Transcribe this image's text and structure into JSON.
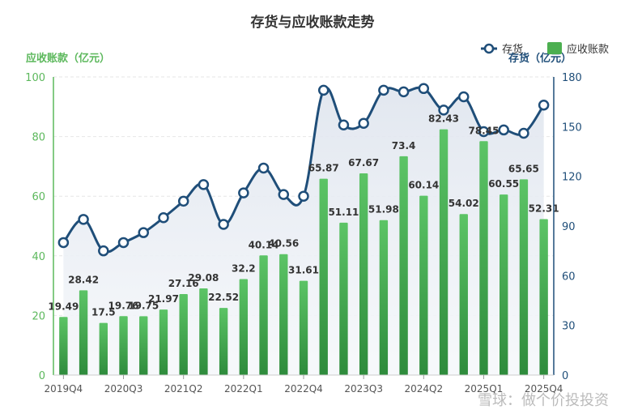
{
  "chart_data": {
    "type": "bar",
    "title": "存货与应收账款走势",
    "ylabel_left": "应收账款（亿元）",
    "ylabel_right": "存货（亿元）",
    "ylim_left": [
      0,
      100
    ],
    "yticks_left": [
      "0",
      "20",
      "40",
      "60",
      "80",
      "100"
    ],
    "ylim_right": [
      0,
      180
    ],
    "yticks_right": [
      "0",
      "30",
      "60",
      "90",
      "120",
      "150",
      "180"
    ],
    "x_tick_labels": [
      "2019Q4",
      "2020Q3",
      "2021Q2",
      "2022Q1",
      "2022Q4",
      "2023Q3",
      "2024Q2",
      "2025Q1",
      "2025Q4"
    ],
    "categories": [
      "2019Q4",
      "2020Q1",
      "2020Q2",
      "2020Q3",
      "2020Q4",
      "2021Q1",
      "2021Q2",
      "2021Q3",
      "2021Q4",
      "2022Q1",
      "2022Q2",
      "2022Q3",
      "2022Q4",
      "2023Q1",
      "2023Q2",
      "2023Q3",
      "2023Q4",
      "2024Q1",
      "2024Q2",
      "2024Q3",
      "2024Q4",
      "2025Q1",
      "2025Q2",
      "2025Q3",
      "2025Q4"
    ],
    "legend": [
      "存货",
      "应收账款"
    ],
    "legend_position": "top-right",
    "series": [
      {
        "name": "应收账款",
        "type": "bar",
        "axis": "left",
        "color": "#4caf50",
        "values": [
          19.49,
          28.42,
          17.5,
          19.76,
          19.75,
          21.97,
          27.16,
          29.08,
          22.52,
          32.2,
          40.14,
          40.56,
          31.61,
          65.87,
          51.11,
          67.67,
          51.98,
          73.4,
          60.14,
          82.43,
          54.02,
          78.45,
          60.55,
          65.65,
          52.31
        ],
        "labels": [
          "19.49",
          "28.42",
          "17.5",
          "19.76",
          "19.75",
          "21.97",
          "27.16",
          "29.08",
          "22.52",
          "32.2",
          "40.14",
          "40.56",
          "31.61",
          "65.87",
          "51.11",
          "67.67",
          "51.98",
          "73.4",
          "60.14",
          "82.43",
          "54.02",
          "78.45",
          "60.55",
          "65.65",
          "52.31"
        ]
      },
      {
        "name": "存货",
        "type": "line",
        "axis": "right",
        "color": "#1f4e79",
        "values": [
          80,
          94,
          75,
          80,
          86,
          95,
          105,
          115,
          91,
          110,
          125,
          109,
          108,
          172,
          151,
          152,
          172,
          171,
          173,
          160,
          168,
          147,
          148,
          146,
          163
        ]
      }
    ]
  },
  "watermark": "雪球：做个价投投资"
}
